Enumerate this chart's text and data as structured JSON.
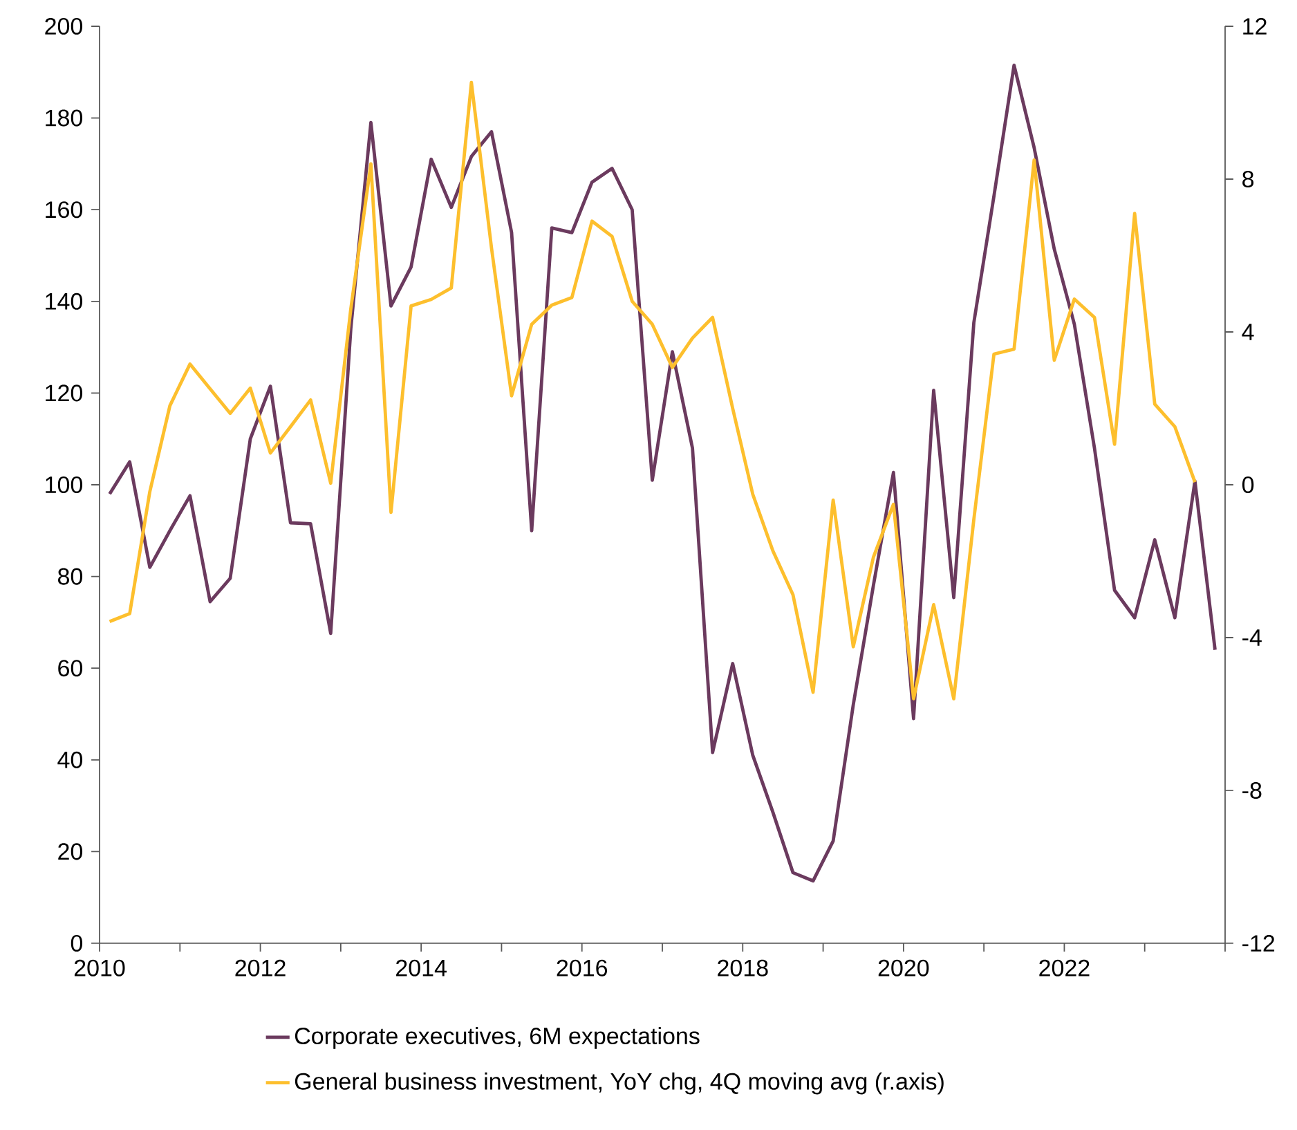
{
  "chart_data": {
    "type": "line",
    "x": [
      2010.125,
      2010.375,
      2010.625,
      2010.875,
      2011.125,
      2011.375,
      2011.625,
      2011.875,
      2012.125,
      2012.375,
      2012.625,
      2012.875,
      2013.125,
      2013.375,
      2013.625,
      2013.875,
      2014.125,
      2014.375,
      2014.625,
      2014.875,
      2015.125,
      2015.375,
      2015.625,
      2015.875,
      2016.125,
      2016.375,
      2016.625,
      2016.875,
      2017.125,
      2017.375,
      2017.625,
      2017.875,
      2018.125,
      2018.375,
      2018.625,
      2018.875,
      2019.125,
      2019.375,
      2019.625,
      2019.875,
      2020.125,
      2020.375,
      2020.625,
      2020.875,
      2021.125,
      2021.375,
      2021.625,
      2021.875,
      2022.125,
      2022.375,
      2022.625,
      2022.875,
      2023.125,
      2023.375,
      2023.625,
      2023.875
    ],
    "series": [
      {
        "name": "Corporate executives, 6M expectations",
        "color": "#6b3a5e",
        "values": [
          98,
          105,
          82,
          90,
          97.6,
          74.5,
          79.6,
          110,
          121.5,
          91.7,
          91.5,
          67.6,
          134,
          179,
          139,
          147.5,
          171,
          160.5,
          171.6,
          177,
          155,
          90,
          156,
          155,
          166,
          169,
          160,
          101,
          129,
          108,
          41.6,
          61,
          41,
          28.6,
          15.4,
          13.6,
          22.3,
          52,
          78,
          102.7,
          49,
          120.6,
          75.4,
          135.4,
          163,
          191.5,
          173.5,
          151.4,
          135,
          108,
          77,
          71,
          88,
          71,
          100.8,
          64
        ]
      },
      {
        "name": "General business investment, YoY chg, 4Q moving avg (r.axis)",
        "color": "#fdbf2d",
        "axis": "y2",
        "values": [
          -3.58,
          -3.37,
          -0.18,
          2.07,
          3.16,
          2.51,
          1.87,
          2.53,
          0.83,
          1.52,
          2.22,
          0.04,
          4.6,
          8.4,
          -0.72,
          4.68,
          4.85,
          5.15,
          10.53,
          6.2,
          2.33,
          4.2,
          4.7,
          4.9,
          6.9,
          6.5,
          4.8,
          4.2,
          3.07,
          3.84,
          4.38,
          2.0,
          -0.25,
          -1.73,
          -2.88,
          -5.43,
          -0.4,
          -4.24,
          -1.9,
          -0.51,
          -5.6,
          -3.14,
          -5.6,
          -0.9,
          3.42,
          3.55,
          8.5,
          3.26,
          4.86,
          4.38,
          1.06,
          7.1,
          2.11,
          1.52,
          0.07,
          null
        ]
      }
    ],
    "xlim": [
      2010,
      2024
    ],
    "xticks": [
      2010,
      {
        "value": 2011,
        "label": null
      },
      2012,
      {
        "value": 2013,
        "label": null
      },
      2014,
      {
        "value": 2015,
        "label": null
      },
      2016,
      {
        "value": 2017,
        "label": null
      },
      2018,
      {
        "value": 2019,
        "label": null
      },
      2020,
      {
        "value": 2021,
        "label": null
      },
      2022,
      {
        "value": 2023,
        "label": null
      },
      {
        "value": 2024,
        "label": null
      }
    ],
    "ylim": [
      0,
      200
    ],
    "yticks": [
      0,
      20,
      40,
      60,
      80,
      100,
      120,
      140,
      160,
      180,
      200
    ],
    "y2lim": [
      -12,
      12
    ],
    "y2ticks": [
      -12,
      -8,
      -4,
      0,
      4,
      8,
      12
    ],
    "legend": "bottom",
    "grid": false
  }
}
